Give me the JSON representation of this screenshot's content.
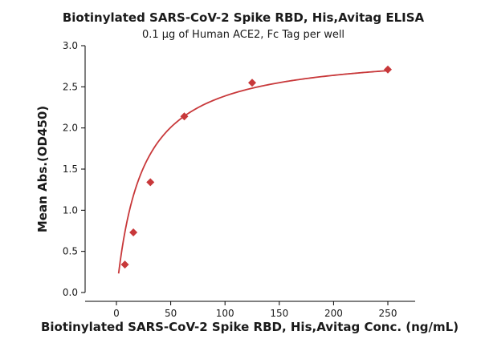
{
  "chart_data": {
    "type": "scatter",
    "title": "Biotinylated SARS-CoV-2 Spike RBD, His,Avitag ELISA",
    "subtitle": "0.1 µg of Human ACE2, Fc Tag per well",
    "xlabel": "Biotinylated SARS-CoV-2 Spike RBD, His,Avitag Conc. (ng/mL)",
    "ylabel": "Mean Abs.(OD450)",
    "xlim": [
      -25,
      270
    ],
    "ylim": [
      0,
      3.0
    ],
    "x_ticks": [
      0,
      50,
      100,
      150,
      200,
      250
    ],
    "x_tick_labels": [
      "0",
      "50",
      "100",
      "150",
      "200",
      "250"
    ],
    "y_ticks": [
      0,
      0.5,
      1.0,
      1.5,
      2.0,
      2.5,
      3.0
    ],
    "y_tick_labels": [
      "0.0",
      "0.5",
      "1.0",
      "1.5",
      "2.0",
      "2.5",
      "3.0"
    ],
    "grid": false,
    "legend": "none",
    "series": [
      {
        "marker": "diamond",
        "color": "#c8383a",
        "x": [
          7.8,
          15.6,
          31.25,
          62.5,
          125,
          250
        ],
        "y": [
          0.34,
          0.73,
          1.34,
          2.14,
          2.55,
          2.71
        ]
      }
    ],
    "fit": {
      "type": "hyperbolic",
      "color": "#c8383a",
      "bmax": 2.95,
      "kd": 23.5
    }
  }
}
